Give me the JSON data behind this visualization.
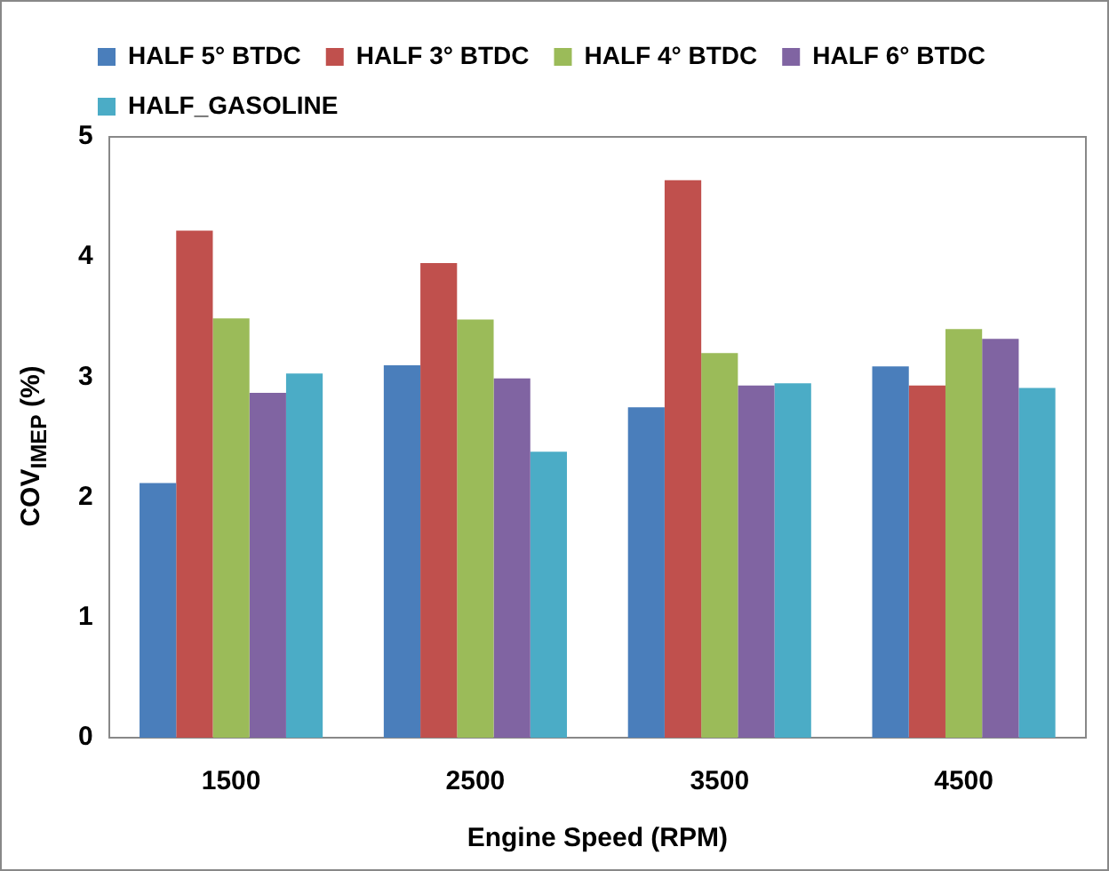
{
  "chart_data": {
    "type": "bar",
    "xlabel": "Engine Speed (RPM)",
    "ylabel": "COV$_{IMEP}$ (%)",
    "categories": [
      "1500",
      "2500",
      "3500",
      "4500"
    ],
    "series": [
      {
        "name": "HALF 5° BTDC",
        "color": "#4a7ebb",
        "values": [
          2.12,
          3.1,
          2.75,
          3.09
        ]
      },
      {
        "name": "HALF 3° BTDC",
        "color": "#c0504d",
        "values": [
          4.22,
          3.95,
          4.64,
          2.93
        ]
      },
      {
        "name": "HALF 4° BTDC",
        "color": "#9bbb59",
        "values": [
          3.49,
          3.48,
          3.2,
          3.4
        ]
      },
      {
        "name": "HALF 6° BTDC",
        "color": "#8064a2",
        "values": [
          2.87,
          2.99,
          2.93,
          3.32
        ]
      },
      {
        "name": "HALF_GASOLINE",
        "color": "#4bacc6",
        "values": [
          3.03,
          2.38,
          2.95,
          2.91
        ]
      }
    ],
    "ylim": [
      0,
      5
    ],
    "yticks": [
      0,
      1,
      2,
      3,
      4,
      5
    ],
    "grid": false,
    "legend": "top"
  }
}
